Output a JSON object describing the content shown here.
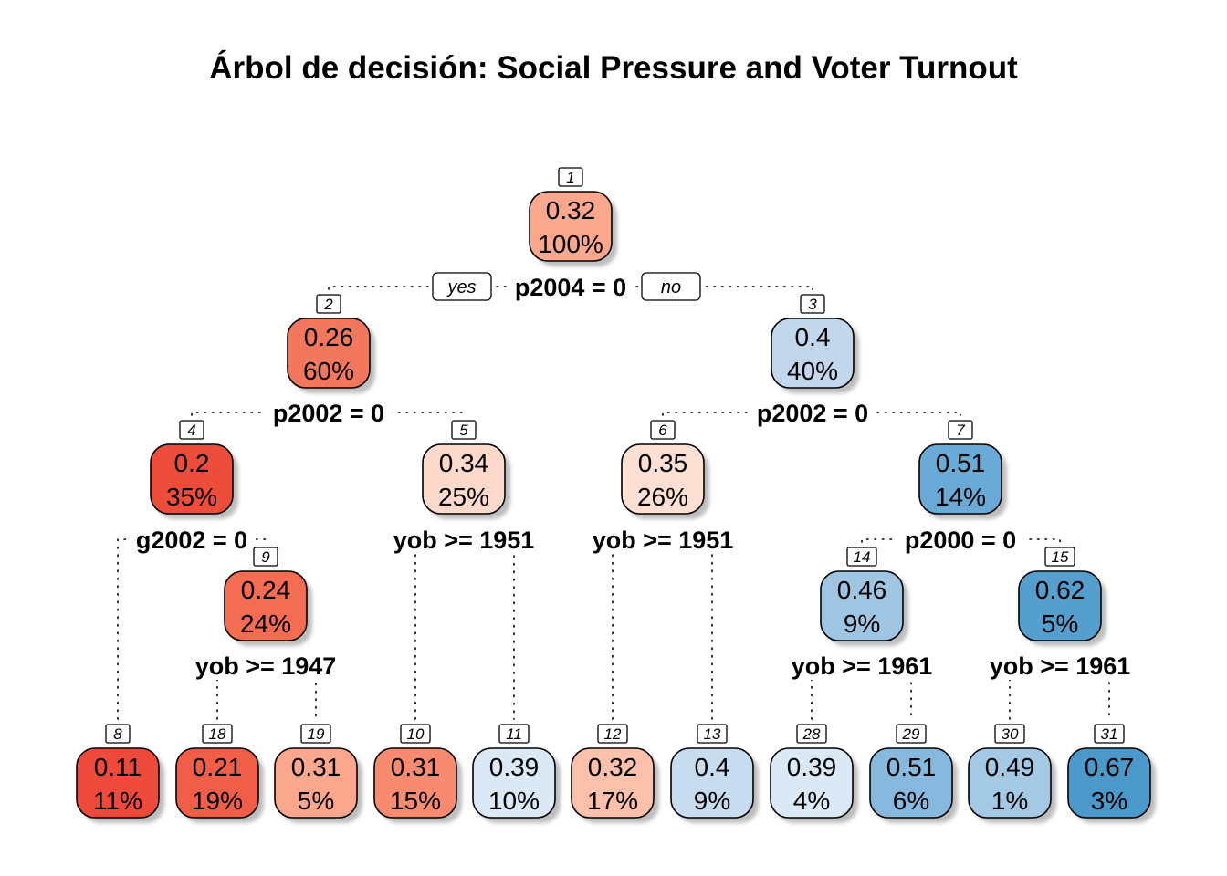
{
  "title": "Árbol de decisión: Social Pressure and Voter Turnout",
  "branch_labels": {
    "yes": "yes",
    "no": "no"
  },
  "nodes": [
    {
      "id": "1",
      "value": "0.32",
      "pct": "100%",
      "color": "#f9a88d"
    },
    {
      "id": "2",
      "value": "0.26",
      "pct": "60%",
      "color": "#f2775d"
    },
    {
      "id": "3",
      "value": "0.4",
      "pct": "40%",
      "color": "#c2d6ec"
    },
    {
      "id": "4",
      "value": "0.2",
      "pct": "35%",
      "color": "#ee4d3c"
    },
    {
      "id": "5",
      "value": "0.34",
      "pct": "25%",
      "color": "#fdd9cc"
    },
    {
      "id": "6",
      "value": "0.35",
      "pct": "26%",
      "color": "#fddfd3"
    },
    {
      "id": "7",
      "value": "0.51",
      "pct": "14%",
      "color": "#6aaad6"
    },
    {
      "id": "9",
      "value": "0.24",
      "pct": "24%",
      "color": "#f46c52"
    },
    {
      "id": "14",
      "value": "0.46",
      "pct": "9%",
      "color": "#9ec6e2"
    },
    {
      "id": "15",
      "value": "0.62",
      "pct": "5%",
      "color": "#549fcd"
    },
    {
      "id": "8",
      "value": "0.11",
      "pct": "11%",
      "color": "#ee4a3b"
    },
    {
      "id": "18",
      "value": "0.21",
      "pct": "19%",
      "color": "#f05e47"
    },
    {
      "id": "19",
      "value": "0.31",
      "pct": "5%",
      "color": "#faa78e"
    },
    {
      "id": "10",
      "value": "0.31",
      "pct": "15%",
      "color": "#f88b6f"
    },
    {
      "id": "11",
      "value": "0.39",
      "pct": "10%",
      "color": "#dbe8f5"
    },
    {
      "id": "12",
      "value": "0.32",
      "pct": "17%",
      "color": "#fcc0ab"
    },
    {
      "id": "13",
      "value": "0.4",
      "pct": "9%",
      "color": "#c8dcf0"
    },
    {
      "id": "28",
      "value": "0.39",
      "pct": "4%",
      "color": "#dbe8f5"
    },
    {
      "id": "29",
      "value": "0.51",
      "pct": "6%",
      "color": "#86b9dd"
    },
    {
      "id": "30",
      "value": "0.49",
      "pct": "1%",
      "color": "#a4c9e4"
    },
    {
      "id": "31",
      "value": "0.67",
      "pct": "3%",
      "color": "#4b98ca"
    }
  ],
  "splits": [
    {
      "node": "1",
      "label": "p2004 = 0"
    },
    {
      "node": "2",
      "label": "p2002 = 0"
    },
    {
      "node": "3",
      "label": "p2002 = 0"
    },
    {
      "node": "4",
      "label": "g2002 = 0"
    },
    {
      "node": "5",
      "label": "yob >= 1951"
    },
    {
      "node": "6",
      "label": "yob >= 1951"
    },
    {
      "node": "7",
      "label": "p2000 = 0"
    },
    {
      "node": "9",
      "label": "yob >= 1947"
    },
    {
      "node": "14",
      "label": "yob >= 1961"
    },
    {
      "node": "15",
      "label": "yob >= 1961"
    }
  ]
}
